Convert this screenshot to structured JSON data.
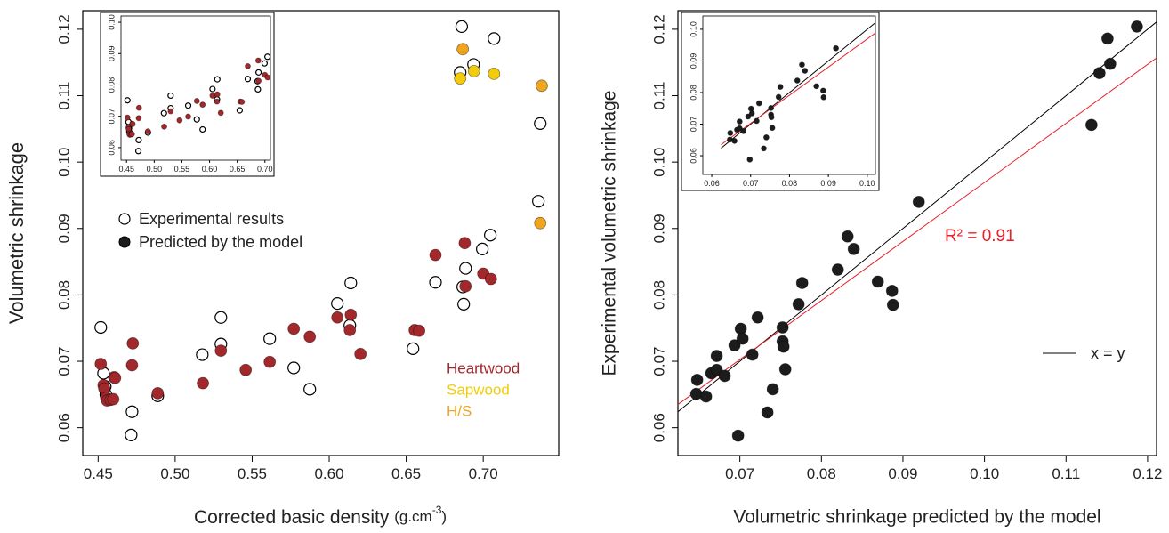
{
  "chart_data": [
    {
      "type": "scatter",
      "ylabel": "Volumetric shrinkage",
      "xlabel": "Corrected basic density",
      "xunit": "(g.cm",
      "xunit_sup": "-3",
      "xunit_end": ")",
      "xlim": [
        0.44,
        0.749
      ],
      "ylim": [
        0.0558,
        0.1228
      ],
      "xticks": [
        0.45,
        {
          "value": 0.5,
          "label": "0.50"
        },
        0.55,
        {
          "value": 0.6,
          "label": "0.60"
        },
        0.65,
        {
          "value": 0.7,
          "label": "0.70"
        }
      ],
      "yticks": [
        0.06,
        0.07,
        0.08,
        0.09,
        {
          "value": 0.1,
          "label": "0.10"
        },
        0.11,
        0.12
      ],
      "legend_predicted": "Predicted by the model",
      "series": [
        {
          "name": "Experimental results",
          "marker": "open",
          "color": "#000000",
          "x": [
            0.4517,
            0.4535,
            0.4546,
            0.455,
            0.472,
            0.4714,
            0.4887,
            0.5176,
            0.5297,
            0.5297,
            0.5614,
            0.577,
            0.5874,
            0.6053,
            0.614,
            0.6134,
            0.6544,
            0.669,
            0.6873,
            0.6885,
            0.6867,
            0.6994,
            0.7046,
            0.686,
            0.685,
            0.6937,
            0.707,
            0.737,
            0.7358
          ],
          "y": [
            0.0751,
            0.0682,
            0.0662,
            0.065,
            0.0624,
            0.0589,
            0.0648,
            0.071,
            0.0766,
            0.0726,
            0.0734,
            0.069,
            0.0658,
            0.0787,
            0.0818,
            0.0754,
            0.0719,
            0.0819,
            0.0786,
            0.084,
            0.0812,
            0.0869,
            0.089,
            0.1204,
            0.1135,
            0.1147,
            0.1186,
            0.1058,
            0.0941
          ]
        },
        {
          "name": "Heartwood",
          "marker": "filled",
          "color": "#a3282b",
          "x": [
            0.4517,
            0.4535,
            0.454,
            0.4552,
            0.4558,
            0.4581,
            0.4598,
            0.4604,
            0.461,
            0.4725,
            0.472,
            0.4887,
            0.518,
            0.5297,
            0.5458,
            0.5614,
            0.577,
            0.5874,
            0.6053,
            0.614,
            0.6134,
            0.6203,
            0.6555,
            0.6584,
            0.669,
            0.688,
            0.6885,
            0.7,
            0.705
          ],
          "y": [
            0.0696,
            0.0664,
            0.0659,
            0.0645,
            0.0641,
            0.0642,
            0.0643,
            0.0676,
            0.0675,
            0.0727,
            0.0694,
            0.0652,
            0.0667,
            0.0716,
            0.0687,
            0.0699,
            0.0749,
            0.0737,
            0.0766,
            0.077,
            0.0747,
            0.0711,
            0.0747,
            0.0746,
            0.086,
            0.0878,
            0.0813,
            0.0832,
            0.0824
          ]
        },
        {
          "name": "Sapwood",
          "marker": "filled",
          "color": "#f2cc0c",
          "x": [
            0.685,
            0.694,
            0.707
          ],
          "y": [
            0.1126,
            0.1137,
            0.1133
          ]
        },
        {
          "name": "H/S",
          "marker": "filled",
          "color": "#f0a51e",
          "x": [
            0.6867,
            0.738,
            0.737
          ],
          "y": [
            0.117,
            0.1115,
            0.0908
          ]
        }
      ]
    },
    {
      "type": "inset",
      "source": 0,
      "series_shown": [
        0,
        1
      ],
      "xlim": [
        0.44,
        0.71
      ],
      "ylim": [
        0.056,
        0.102
      ],
      "xticks": [
        0.45,
        {
          "value": 0.5,
          "label": "0.50"
        },
        0.55,
        {
          "value": 0.6,
          "label": "0.60"
        },
        0.65,
        {
          "value": 0.7,
          "label": "0.70"
        }
      ],
      "yticks": [
        0.06,
        0.07,
        0.08,
        0.09,
        {
          "value": 0.1,
          "label": "0.10"
        }
      ]
    },
    {
      "type": "scatter",
      "ylabel": "Experimental volumetric shrinkage",
      "xlabel": "Volumetric shrinkage predicted by the model",
      "xlim": [
        0.0624,
        0.1211
      ],
      "ylim": [
        0.0558,
        0.1228
      ],
      "xticks": [
        0.07,
        0.08,
        0.09,
        {
          "value": 0.1,
          "label": "0.10"
        },
        0.11,
        0.12
      ],
      "yticks": [
        0.06,
        0.07,
        0.08,
        0.09,
        {
          "value": 0.1,
          "label": "0.10"
        },
        0.11,
        0.12
      ],
      "annotation": "R² = 0.91",
      "annotation_color": "#e8202a",
      "identity_label": "x = y",
      "identity_color": "#000000",
      "fit_line": {
        "color": "#e8202a",
        "x": [
          0.0624,
          0.1211
        ],
        "y": [
          0.0635,
          0.1157
        ]
      },
      "series": [
        {
          "marker": "filled",
          "color": "#1c1c1c",
          "x": [
            0.06476,
            0.06465,
            0.06585,
            0.0665,
            0.06716,
            0.06716,
            0.06814,
            0.06934,
            0.07011,
            0.07033,
            0.06978,
            0.07153,
            0.07218,
            0.07404,
            0.07338,
            0.07524,
            0.07524,
            0.07535,
            0.07557,
            0.0772,
            0.07764,
            0.08201,
            0.08321,
            0.08397,
            0.08692,
            0.08867,
            0.08878,
            0.09194,
            0.11312,
            0.1141,
            0.11509,
            0.11541,
            0.11869
          ],
          "y": [
            0.0672,
            0.0651,
            0.0647,
            0.0682,
            0.0687,
            0.0708,
            0.0678,
            0.0724,
            0.0749,
            0.0734,
            0.0588,
            0.071,
            0.0766,
            0.0658,
            0.0623,
            0.073,
            0.0751,
            0.0722,
            0.0688,
            0.0786,
            0.0818,
            0.0838,
            0.0888,
            0.0869,
            0.082,
            0.0806,
            0.0785,
            0.094,
            0.1056,
            0.1134,
            0.1186,
            0.1148,
            0.1204
          ]
        }
      ]
    },
    {
      "type": "inset",
      "source": 2,
      "series_shown": [
        0
      ],
      "xlim": [
        0.0577,
        0.1021
      ],
      "ylim": [
        0.0541,
        0.1042
      ],
      "xticks": [
        0.06,
        0.07,
        0.08,
        0.09,
        {
          "value": 0.1,
          "label": "0.10"
        }
      ],
      "yticks": [
        0.06,
        0.07,
        0.08,
        0.09,
        {
          "value": 0.1,
          "label": "0.10"
        }
      ]
    }
  ]
}
